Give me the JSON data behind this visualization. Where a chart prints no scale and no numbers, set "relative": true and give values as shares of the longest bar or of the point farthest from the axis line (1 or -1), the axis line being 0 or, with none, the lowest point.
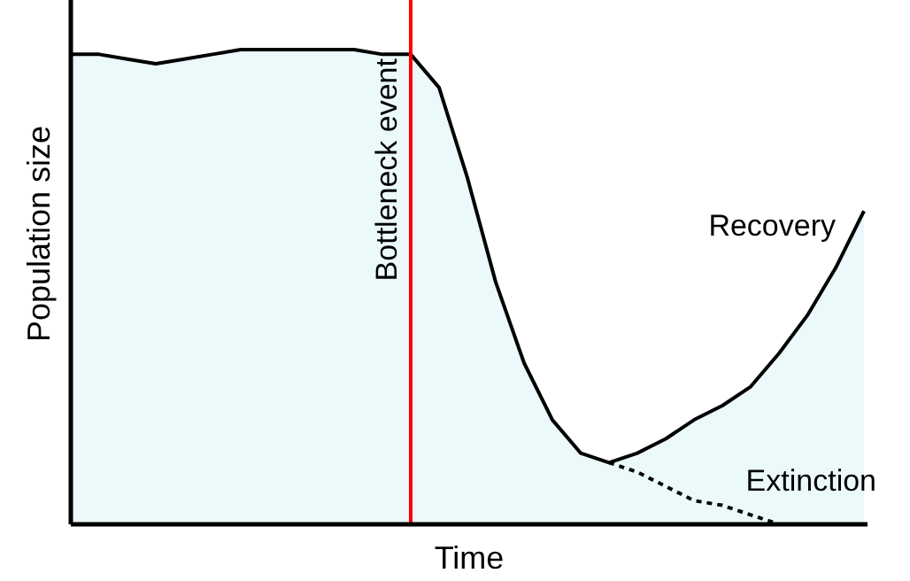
{
  "chart_data": {
    "type": "area",
    "relative": true,
    "xlabel": "Time",
    "ylabel": "Population size",
    "categories": [
      null,
      null,
      null,
      null,
      null,
      null,
      null,
      null,
      null,
      null,
      null,
      null,
      null,
      null,
      null,
      null,
      null,
      null,
      null,
      null,
      null,
      null,
      null,
      null,
      null,
      null,
      null,
      null,
      null
    ],
    "series": [
      {
        "color": "#000000",
        "values": [
          0.99,
          0.99,
          0.98,
          0.97,
          0.98,
          0.99,
          1,
          1,
          1,
          1,
          1,
          0.99,
          0.99,
          0.92,
          0.73,
          0.51,
          0.34,
          0.22,
          0.15,
          0.13,
          0.15,
          0.18,
          0.22,
          0.25,
          0.29,
          0.36,
          0.44,
          0.54,
          0.66
        ]
      },
      {
        "type": "line",
        "color": "#000000",
        "line_style": "dotted",
        "values": [
          null,
          null,
          null,
          null,
          null,
          null,
          null,
          null,
          null,
          null,
          null,
          null,
          null,
          null,
          null,
          null,
          null,
          null,
          null,
          0.13,
          0.11,
          0.08,
          0.05,
          0.04,
          0.02,
          0,
          null,
          null,
          null
        ]
      }
    ],
    "annotations": [
      "Bottleneck event",
      "Recovery",
      "Extinction"
    ]
  }
}
